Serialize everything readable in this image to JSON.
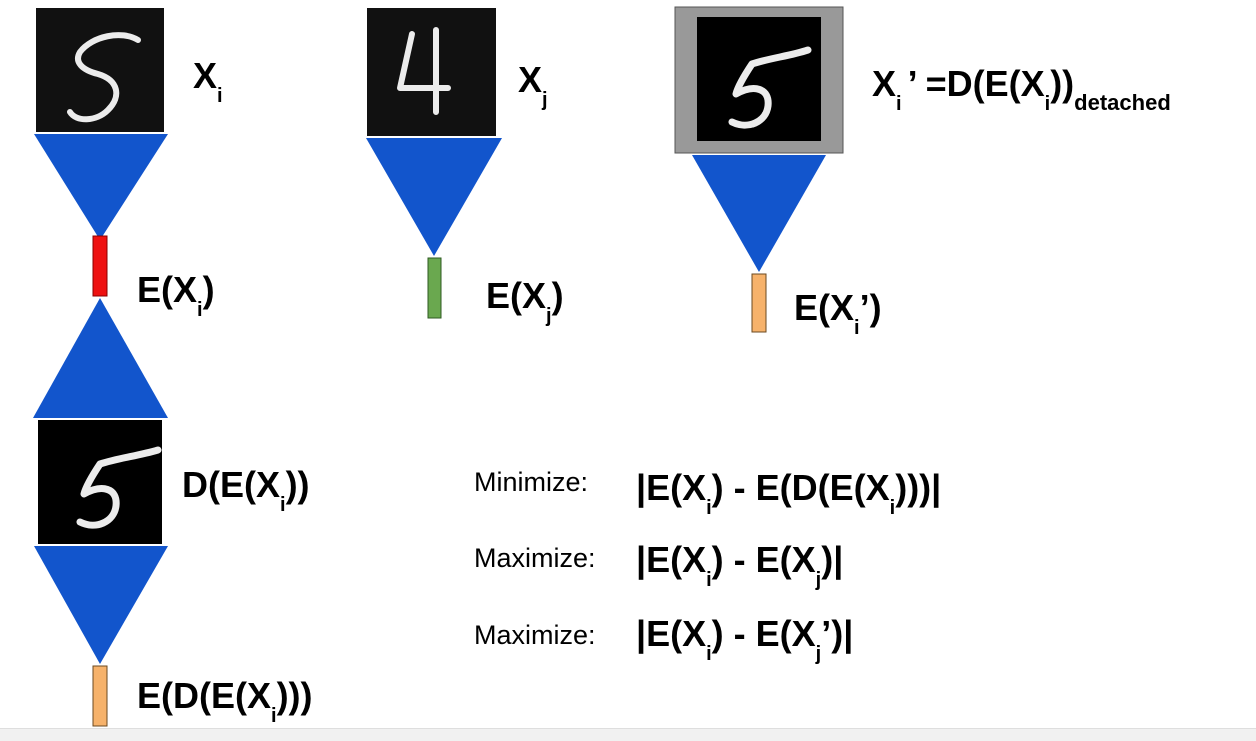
{
  "colors": {
    "encoder_blue": "#1255cc",
    "code_red": "#ee1111",
    "code_green": "#6aa84f",
    "code_orange": "#f6b26b",
    "frame_gray": "#999999",
    "image_black": "#111111"
  },
  "labels": {
    "xi": "X",
    "xi_sub": "i",
    "xj": "X",
    "xj_sub": "j",
    "xi_prime_a": "X",
    "xi_prime_sub": "i",
    "xi_prime_b": "’ =D(E(X",
    "xi_prime_sub2": "i",
    "xi_prime_c": "))",
    "xi_prime_detached": "detached",
    "e_xi_a": "E(X",
    "e_xi_sub": "i",
    "e_xi_b": ")",
    "e_xj_a": "E(X",
    "e_xj_sub": "j",
    "e_xj_b": ")",
    "e_xip_a": "E(X",
    "e_xip_sub": "i",
    "e_xip_b": "’)",
    "d_e_xi_a": "D(E(X",
    "d_e_xi_sub": "i",
    "d_e_xi_b": "))",
    "e_d_e_xi_a": "E(D(E(X",
    "e_d_e_xi_sub": "i",
    "e_d_e_xi_b": ")))"
  },
  "equations": [
    {
      "action": "Minimize:",
      "p1": "|E(X",
      "s1": "i",
      "p2": ") - E(D(E(X",
      "s2": "i",
      "p3": ")))|"
    },
    {
      "action": "Maximize:",
      "p1": "|E(X",
      "s1": "i",
      "p2": ") - E(X",
      "s2": "j",
      "p3": ")|"
    },
    {
      "action": "Maximize:",
      "p1": "|E(X",
      "s1": "i",
      "p2": ") - E(X",
      "s2": "j",
      "p3": "’)|"
    }
  ],
  "digits": {
    "img_xi": "5",
    "img_xj": "4",
    "img_xi_prime": "5",
    "img_d_e_xi": "5"
  }
}
